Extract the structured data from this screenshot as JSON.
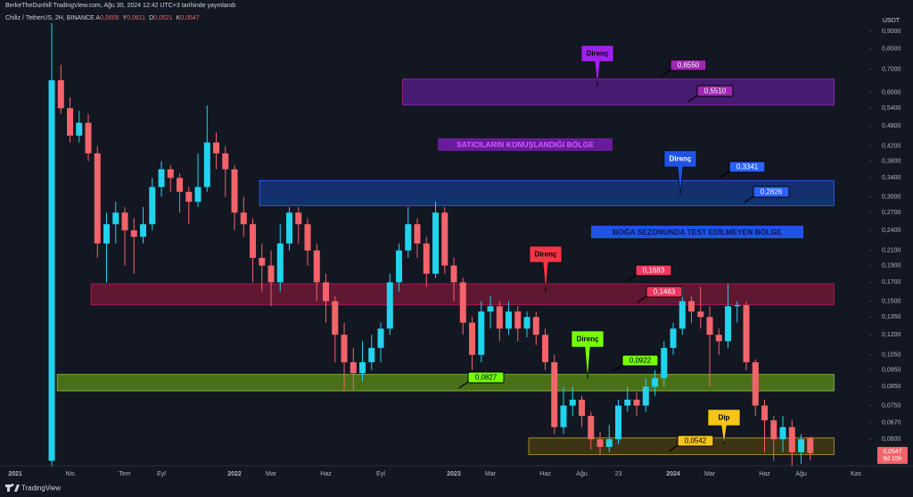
{
  "chart_data": {
    "type": "candlestick",
    "header": "BerkeTheDunhill TradingView.com, Ağu 30, 2024 12:42 UTC+3 tarihinde yayınlandı",
    "symbol": "Chiliz / TetherUS, 2H, BINANCE",
    "ohlc_legend": [
      {
        "key": "A",
        "value": 0.0605,
        "label": "0,0605"
      },
      {
        "key": "Y",
        "value": 0.0611,
        "label": "0,0611"
      },
      {
        "key": "D",
        "value": 0.0521,
        "label": "0,0521"
      },
      {
        "key": "K",
        "value": 0.0547,
        "label": "0,0547"
      }
    ],
    "currency": "USDT",
    "x": [
      2,
      2.5,
      3,
      3.5,
      4,
      4.5,
      5,
      5.5,
      6,
      6.5,
      7,
      7.5,
      8,
      8.5,
      9,
      9.5,
      10,
      10.5,
      11,
      11.5,
      12,
      12.5,
      13,
      13.5,
      14,
      14.5,
      15,
      15.5,
      16,
      16.5,
      17,
      17.5,
      18,
      18.5,
      19,
      19.5,
      20,
      20.5,
      21,
      21.5,
      22,
      22.5,
      23,
      23.5,
      24,
      24.5,
      25,
      25.5,
      26,
      26.5,
      27,
      27.5,
      28,
      28.5,
      29,
      29.5,
      30,
      30.5,
      31,
      31.5,
      32,
      32.5,
      33,
      33.5,
      34,
      34.5,
      35,
      35.5,
      36,
      36.5,
      37,
      37.5,
      38,
      38.5,
      39,
      39.5,
      40,
      40.5,
      41,
      41.5,
      42,
      42.5,
      43,
      43.5
    ],
    "candles": [
      [
        0.052,
        0.95,
        0.05,
        0.65
      ],
      [
        0.65,
        0.72,
        0.52,
        0.54
      ],
      [
        0.54,
        0.58,
        0.43,
        0.45
      ],
      [
        0.45,
        0.53,
        0.43,
        0.49
      ],
      [
        0.49,
        0.52,
        0.38,
        0.4
      ],
      [
        0.4,
        0.42,
        0.2,
        0.22
      ],
      [
        0.22,
        0.27,
        0.17,
        0.25
      ],
      [
        0.25,
        0.29,
        0.22,
        0.27
      ],
      [
        0.27,
        0.28,
        0.19,
        0.24
      ],
      [
        0.24,
        0.26,
        0.18,
        0.23
      ],
      [
        0.23,
        0.28,
        0.22,
        0.25
      ],
      [
        0.25,
        0.34,
        0.24,
        0.32
      ],
      [
        0.32,
        0.38,
        0.3,
        0.36
      ],
      [
        0.36,
        0.37,
        0.31,
        0.34
      ],
      [
        0.34,
        0.35,
        0.27,
        0.31
      ],
      [
        0.31,
        0.32,
        0.25,
        0.29
      ],
      [
        0.29,
        0.4,
        0.28,
        0.32
      ],
      [
        0.32,
        0.55,
        0.31,
        0.43
      ],
      [
        0.43,
        0.46,
        0.36,
        0.4
      ],
      [
        0.4,
        0.42,
        0.3,
        0.36
      ],
      [
        0.36,
        0.37,
        0.24,
        0.27
      ],
      [
        0.27,
        0.3,
        0.23,
        0.25
      ],
      [
        0.25,
        0.26,
        0.17,
        0.2
      ],
      [
        0.2,
        0.22,
        0.16,
        0.19
      ],
      [
        0.19,
        0.21,
        0.145,
        0.17
      ],
      [
        0.17,
        0.25,
        0.16,
        0.22
      ],
      [
        0.22,
        0.28,
        0.21,
        0.27
      ],
      [
        0.27,
        0.28,
        0.22,
        0.25
      ],
      [
        0.25,
        0.26,
        0.19,
        0.21
      ],
      [
        0.21,
        0.22,
        0.15,
        0.17
      ],
      [
        0.17,
        0.18,
        0.13,
        0.15
      ],
      [
        0.15,
        0.155,
        0.1,
        0.12
      ],
      [
        0.12,
        0.13,
        0.083,
        0.1
      ],
      [
        0.1,
        0.11,
        0.083,
        0.093
      ],
      [
        0.093,
        0.115,
        0.088,
        0.1
      ],
      [
        0.1,
        0.12,
        0.095,
        0.11
      ],
      [
        0.11,
        0.13,
        0.1,
        0.125
      ],
      [
        0.125,
        0.18,
        0.12,
        0.17
      ],
      [
        0.17,
        0.22,
        0.16,
        0.21
      ],
      [
        0.21,
        0.28,
        0.2,
        0.25
      ],
      [
        0.25,
        0.26,
        0.2,
        0.22
      ],
      [
        0.22,
        0.23,
        0.165,
        0.18
      ],
      [
        0.18,
        0.29,
        0.175,
        0.27
      ],
      [
        0.27,
        0.28,
        0.18,
        0.19
      ],
      [
        0.19,
        0.2,
        0.15,
        0.17
      ],
      [
        0.17,
        0.175,
        0.12,
        0.13
      ],
      [
        0.13,
        0.135,
        0.095,
        0.105
      ],
      [
        0.105,
        0.15,
        0.1,
        0.14
      ],
      [
        0.14,
        0.155,
        0.125,
        0.145
      ],
      [
        0.145,
        0.15,
        0.115,
        0.125
      ],
      [
        0.125,
        0.15,
        0.12,
        0.14
      ],
      [
        0.14,
        0.145,
        0.115,
        0.125
      ],
      [
        0.125,
        0.14,
        0.118,
        0.135
      ],
      [
        0.135,
        0.14,
        0.112,
        0.12
      ],
      [
        0.12,
        0.125,
        0.095,
        0.1
      ],
      [
        0.1,
        0.105,
        0.062,
        0.065
      ],
      [
        0.065,
        0.085,
        0.062,
        0.075
      ],
      [
        0.075,
        0.085,
        0.07,
        0.078
      ],
      [
        0.078,
        0.08,
        0.065,
        0.07
      ],
      [
        0.07,
        0.072,
        0.056,
        0.06
      ],
      [
        0.06,
        0.063,
        0.054,
        0.057
      ],
      [
        0.057,
        0.066,
        0.055,
        0.06
      ],
      [
        0.06,
        0.078,
        0.058,
        0.075
      ],
      [
        0.075,
        0.085,
        0.072,
        0.078
      ],
      [
        0.078,
        0.082,
        0.07,
        0.075
      ],
      [
        0.075,
        0.09,
        0.072,
        0.085
      ],
      [
        0.085,
        0.095,
        0.08,
        0.09
      ],
      [
        0.09,
        0.115,
        0.085,
        0.11
      ],
      [
        0.11,
        0.13,
        0.105,
        0.125
      ],
      [
        0.125,
        0.165,
        0.12,
        0.15
      ],
      [
        0.15,
        0.155,
        0.13,
        0.14
      ],
      [
        0.14,
        0.165,
        0.125,
        0.135
      ],
      [
        0.135,
        0.145,
        0.085,
        0.12
      ],
      [
        0.12,
        0.125,
        0.105,
        0.115
      ],
      [
        0.115,
        0.168,
        0.11,
        0.145
      ],
      [
        0.145,
        0.15,
        0.13,
        0.146
      ],
      [
        0.146,
        0.15,
        0.095,
        0.1
      ],
      [
        0.1,
        0.102,
        0.07,
        0.075
      ],
      [
        0.075,
        0.078,
        0.055,
        0.068
      ],
      [
        0.068,
        0.07,
        0.052,
        0.06
      ],
      [
        0.06,
        0.07,
        0.055,
        0.065
      ],
      [
        0.065,
        0.068,
        0.05,
        0.055
      ],
      [
        0.055,
        0.062,
        0.051,
        0.06
      ],
      [
        0.0605,
        0.0611,
        0.0521,
        0.0547
      ]
    ],
    "up_color": "#22d3ee",
    "down_color": "#f2646a",
    "xlim": [
      -0.83,
      46.73
    ],
    "xticks": [
      {
        "value": 0,
        "label": "2021"
      },
      {
        "value": 3,
        "label": "Nis"
      },
      {
        "value": 6,
        "label": "Tem"
      },
      {
        "value": 8,
        "label": "Eyl"
      },
      {
        "value": 12,
        "label": "2022"
      },
      {
        "value": 14,
        "label": "Mar"
      },
      {
        "value": 17,
        "label": "Haz"
      },
      {
        "value": 20,
        "label": "Eyl"
      },
      {
        "value": 24,
        "label": "2023"
      },
      {
        "value": 26,
        "label": "Mar"
      },
      {
        "value": 29,
        "label": "Haz"
      },
      {
        "value": 31,
        "label": "Ağu"
      },
      {
        "value": 33,
        "label": "23"
      },
      {
        "value": 36,
        "label": "2024"
      },
      {
        "value": 38,
        "label": "Mar"
      },
      {
        "value": 41,
        "label": "Haz"
      },
      {
        "value": 43,
        "label": "Ağu"
      },
      {
        "value": 46,
        "label": "Kas"
      }
    ],
    "ylim": [
      0.0515,
      0.972
    ],
    "log_scale": true,
    "grid": false,
    "yticks": [
      {
        "value": 0.9,
        "label": "0,9000"
      },
      {
        "value": 0.8,
        "label": "0,8000"
      },
      {
        "value": 0.7,
        "label": "0,7000"
      },
      {
        "value": 0.6,
        "label": "0,6000"
      },
      {
        "value": 0.54,
        "label": "0,5400"
      },
      {
        "value": 0.48,
        "label": "0,4800"
      },
      {
        "value": 0.42,
        "label": "0,4200"
      },
      {
        "value": 0.38,
        "label": "0,3800"
      },
      {
        "value": 0.34,
        "label": "0,3400"
      },
      {
        "value": 0.3,
        "label": "0,3000"
      },
      {
        "value": 0.27,
        "label": "0,2700"
      },
      {
        "value": 0.24,
        "label": "0,2400"
      },
      {
        "value": 0.21,
        "label": "0,2100"
      },
      {
        "value": 0.19,
        "label": "0,1900"
      },
      {
        "value": 0.17,
        "label": "0,1700"
      },
      {
        "value": 0.15,
        "label": "0,1500"
      },
      {
        "value": 0.135,
        "label": "0,1350"
      },
      {
        "value": 0.12,
        "label": "0,1200"
      },
      {
        "value": 0.105,
        "label": "0,1050"
      },
      {
        "value": 0.095,
        "label": "0,0950"
      },
      {
        "value": 0.085,
        "label": "0,0850"
      },
      {
        "value": 0.075,
        "label": "0,0750"
      },
      {
        "value": 0.067,
        "label": "0,0670"
      },
      {
        "value": 0.06,
        "label": "0,0600"
      }
    ],
    "zones": [
      {
        "top": {
          "value": 0.655,
          "label": "0,6550"
        },
        "bottom": {
          "value": 0.551,
          "label": "0,5510"
        },
        "x": [
          21.2,
          44.8
        ],
        "fill": "#5a1e8c",
        "stroke": "#9c27b0",
        "label_color": "#9c27b0",
        "label_text_color": "#ffffff"
      },
      {
        "top": {
          "value": 0.3341,
          "label": "0,3341"
        },
        "bottom": {
          "value": 0.2826,
          "label": "0,2826"
        },
        "x": [
          13.37,
          44.8
        ],
        "fill": "#163a8a",
        "stroke": "#2962ff",
        "label_color": "#2962ff",
        "label_text_color": "#ffffff"
      },
      {
        "top": {
          "value": 0.1683,
          "label": "0,1683"
        },
        "bottom": {
          "value": 0.1463,
          "label": "0,1463"
        },
        "x": [
          4.15,
          44.8
        ],
        "fill": "#7a1838",
        "stroke": "#c2185b",
        "label_color": "#f23660",
        "label_text_color": "#ffffff"
      },
      {
        "top": {
          "value": 0.0922,
          "label": "0,0922"
        },
        "bottom": {
          "value": 0.0827,
          "label": "0,0827"
        },
        "x": [
          2.3,
          44.8
        ],
        "fill": "#5e8f14",
        "stroke": "#8bc34a",
        "label_color": "#76ff03",
        "label_text_color": "#000000"
      },
      {
        "top": 0.0605,
        "bottom": {
          "value": 0.0542,
          "label": "0,0542"
        },
        "x": [
          28.1,
          44.8
        ],
        "fill": "#4a3f12",
        "stroke": "#c9a227",
        "label_color": "#f5c518",
        "label_text_color": "#000000"
      }
    ],
    "callouts": [
      {
        "text": "Direnç",
        "color": "#a020f0",
        "text_color": "#000000"
      },
      {
        "text": "Direnç",
        "color": "#1e53e5",
        "text_color": "#ffffff"
      },
      {
        "text": "Direnç",
        "color": "#f23645",
        "text_color": "#000000"
      },
      {
        "text": "Direnç",
        "color": "#76ff03",
        "text_color": "#000000"
      },
      {
        "text": "Dip",
        "color": "#f5c518",
        "text_color": "#000000"
      }
    ],
    "region_labels": [
      {
        "text": "SATICILARIN KONUŞLANDIĞI BÖLGE",
        "color": "#6a1b9a",
        "text_color": "#d05cff"
      },
      {
        "text": "BOĞA SEZONUNDA TEST EDİLMEYEN BÖLGE",
        "color": "#1e53e5",
        "text_color": "#0a1550"
      }
    ],
    "last_price": {
      "value": 0.0547,
      "label": "0,0547"
    },
    "countdown": "9d 15h",
    "brand": "TradingView"
  }
}
